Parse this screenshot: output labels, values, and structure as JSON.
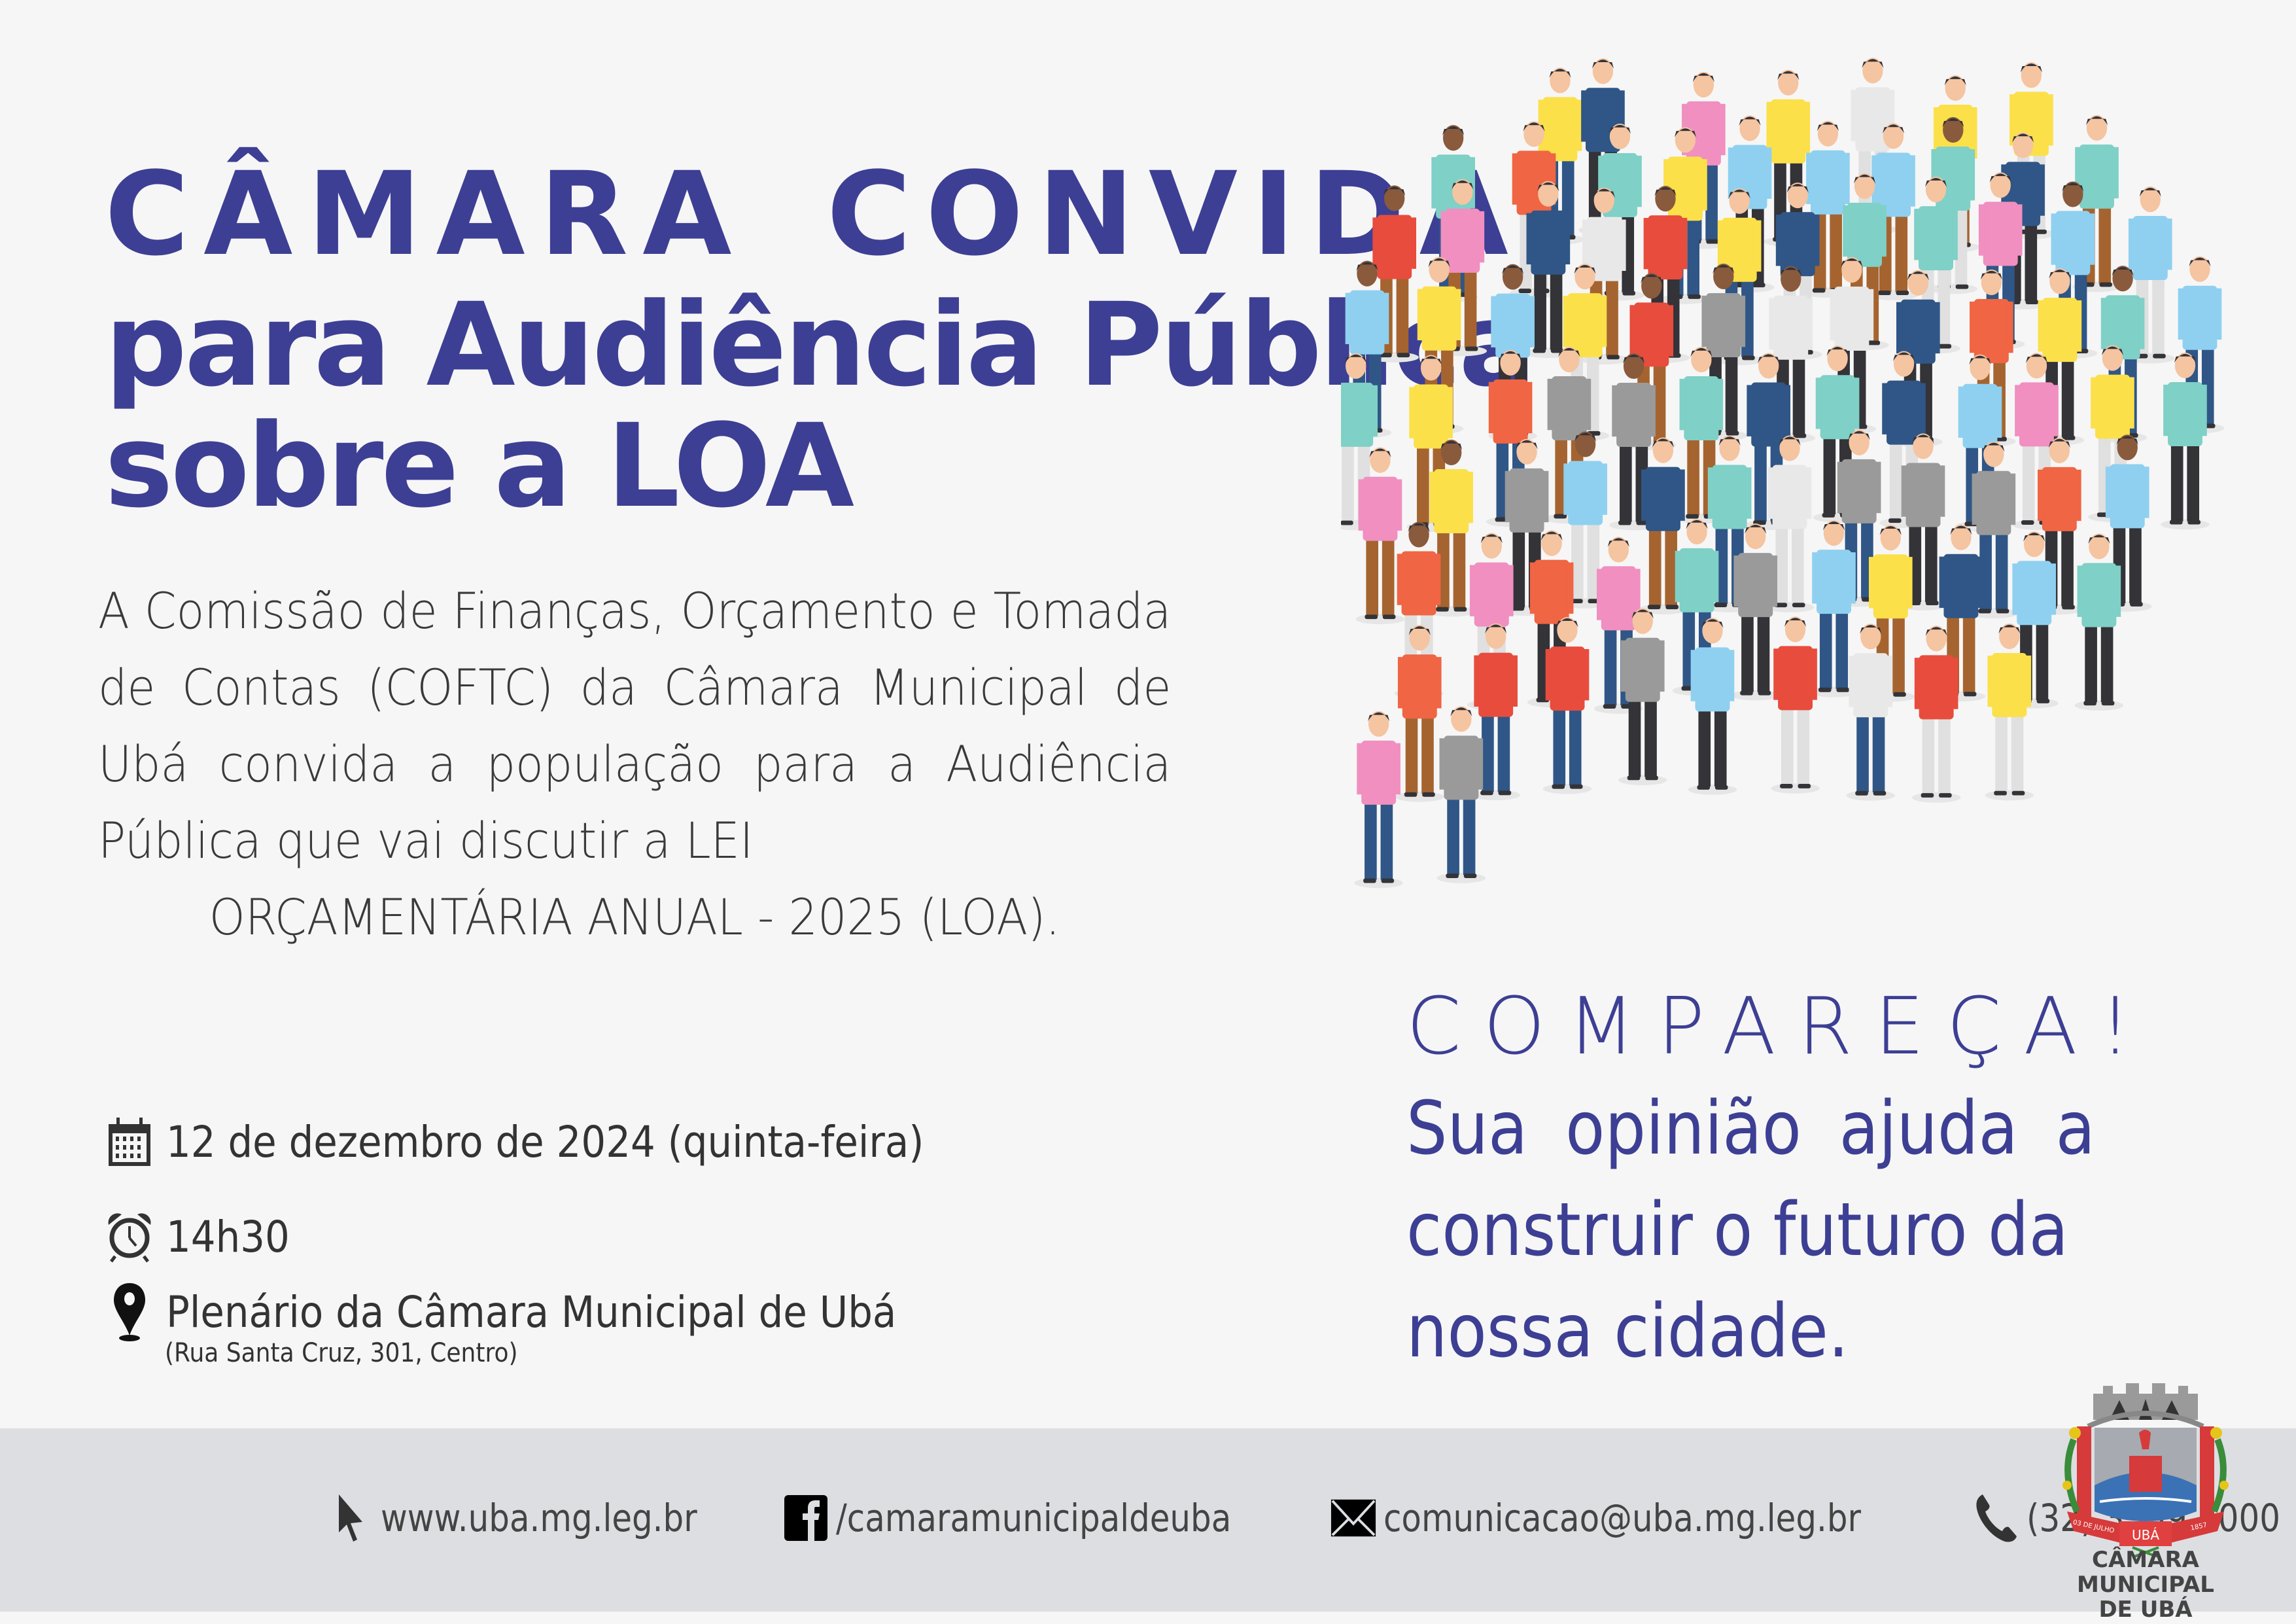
{
  "headline": {
    "line1": "CÂMARA CONVIDA",
    "line2": "para Audiência Pública",
    "line3": "sobre a LOA"
  },
  "description": {
    "text": "A Comissão de  Finanças, Orçamento e Tomada de Contas (COFTC) da Câmara Municipal de Ubá convida a população para a Audiência Pública que vai discutir a LEI",
    "last_line": "ORÇAMENTÁRIA ANUAL - 2025 (LOA)."
  },
  "event": {
    "date": {
      "icon": "calendar-icon",
      "label": "12 de dezembro de 2024 (quinta-feira)"
    },
    "time": {
      "icon": "alarm-clock-icon",
      "label": "14h30"
    },
    "place": {
      "icon": "map-pin-icon",
      "label": "Plenário da Câmara Municipal de Ubá",
      "address": "(Rua Santa Cruz, 301, Centro)"
    }
  },
  "call_to_action": {
    "heading": "COMPAREÇA!",
    "line1": "Sua opinião ajuda a",
    "line2": "construir o futuro da",
    "line3": "nossa cidade."
  },
  "footer": {
    "items": [
      {
        "icon": "cursor-arrow-icon",
        "label": "www.uba.mg.leg.br"
      },
      {
        "icon": "facebook-icon",
        "label": "/camaramunicipaldeuba"
      },
      {
        "icon": "envelope-icon",
        "label": "comunicacao@uba.mg.leg.br"
      },
      {
        "icon": "phone-icon",
        "label": "(32) 3539.5000"
      }
    ],
    "logo": {
      "ribbon_left": "03 DE JULHO",
      "ribbon_center": "UBÁ",
      "ribbon_right": "1857",
      "name_line1": "CÂMARA MUNICIPAL",
      "name_line2": "DE UBÁ"
    }
  },
  "colors": {
    "accent": "#3d3f94",
    "background": "#f6f6f6",
    "footer_band": "#dddee2",
    "body_text": "#3a3a3a"
  },
  "illustration": {
    "icon": "crowd-of-people-illustration"
  }
}
